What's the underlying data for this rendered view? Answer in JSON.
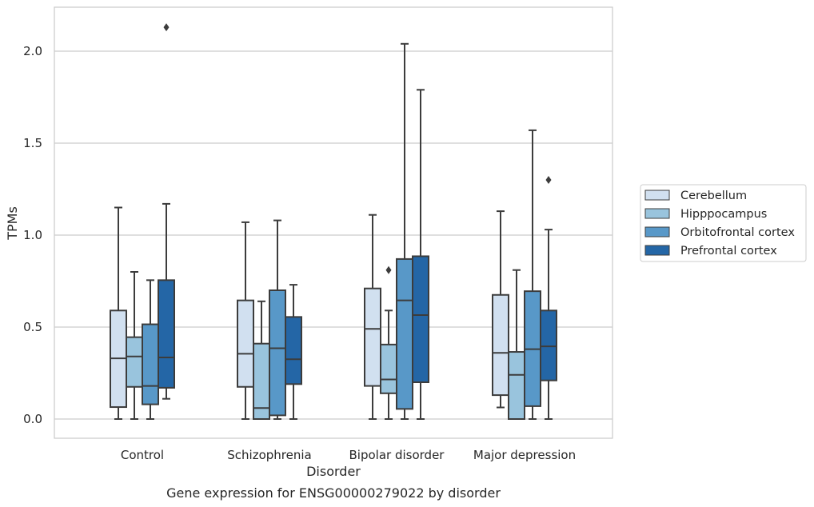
{
  "caption": "Gene expression for ENSG00000279022 by disorder",
  "chart_data": {
    "type": "box",
    "title": "",
    "xlabel": "Disorder",
    "ylabel": "TPMs",
    "ylim": [
      -0.1,
      2.25
    ],
    "yticks": [
      0.0,
      0.5,
      1.0,
      1.5,
      2.0
    ],
    "ytick_labels": [
      "0.0",
      "0.5",
      "1.0",
      "1.5",
      "2.0"
    ],
    "grid": "horizontal",
    "legend_position": "right",
    "categories": [
      "Control",
      "Schizophrenia",
      "Bipolar disorder",
      "Major depression"
    ],
    "series": [
      {
        "name": "Cerebellum",
        "color": "#d1e0f0",
        "boxes": [
          {
            "whislo": 0.0,
            "q1": 0.065,
            "med": 0.33,
            "q3": 0.59,
            "whishi": 1.15,
            "fliers": []
          },
          {
            "whislo": 0.0,
            "q1": 0.175,
            "med": 0.355,
            "q3": 0.645,
            "whishi": 1.07,
            "fliers": []
          },
          {
            "whislo": 0.0,
            "q1": 0.18,
            "med": 0.49,
            "q3": 0.71,
            "whishi": 1.11,
            "fliers": []
          },
          {
            "whislo": 0.063,
            "q1": 0.13,
            "med": 0.36,
            "q3": 0.675,
            "whishi": 1.13,
            "fliers": []
          }
        ]
      },
      {
        "name": "Hipppocampus",
        "color": "#99c4dd",
        "boxes": [
          {
            "whislo": 0.0,
            "q1": 0.175,
            "med": 0.34,
            "q3": 0.445,
            "whishi": 0.8,
            "fliers": []
          },
          {
            "whislo": 0.0,
            "q1": 0.0,
            "med": 0.06,
            "q3": 0.41,
            "whishi": 0.64,
            "fliers": []
          },
          {
            "whislo": 0.0,
            "q1": 0.14,
            "med": 0.215,
            "q3": 0.405,
            "whishi": 0.59,
            "fliers": [
              0.81
            ]
          },
          {
            "whislo": 0.0,
            "q1": 0.0,
            "med": 0.24,
            "q3": 0.365,
            "whishi": 0.81,
            "fliers": []
          }
        ]
      },
      {
        "name": "Orbitofrontal cortex",
        "color": "#5898c8",
        "boxes": [
          {
            "whislo": 0.0,
            "q1": 0.08,
            "med": 0.18,
            "q3": 0.515,
            "whishi": 0.755,
            "fliers": []
          },
          {
            "whislo": 0.0,
            "q1": 0.02,
            "med": 0.385,
            "q3": 0.7,
            "whishi": 1.08,
            "fliers": []
          },
          {
            "whislo": 0.0,
            "q1": 0.055,
            "med": 0.645,
            "q3": 0.87,
            "whishi": 2.04,
            "fliers": []
          },
          {
            "whislo": 0.0,
            "q1": 0.07,
            "med": 0.38,
            "q3": 0.695,
            "whishi": 1.57,
            "fliers": []
          }
        ]
      },
      {
        "name": "Prefrontal cortex",
        "color": "#2466a6",
        "boxes": [
          {
            "whislo": 0.11,
            "q1": 0.17,
            "med": 0.335,
            "q3": 0.755,
            "whishi": 1.17,
            "fliers": [
              2.13
            ]
          },
          {
            "whislo": 0.0,
            "q1": 0.19,
            "med": 0.325,
            "q3": 0.555,
            "whishi": 0.73,
            "fliers": []
          },
          {
            "whislo": 0.0,
            "q1": 0.2,
            "med": 0.565,
            "q3": 0.885,
            "whishi": 1.79,
            "fliers": []
          },
          {
            "whislo": 0.0,
            "q1": 0.21,
            "med": 0.395,
            "q3": 0.59,
            "whishi": 1.03,
            "fliers": [
              1.3
            ]
          }
        ]
      }
    ]
  }
}
